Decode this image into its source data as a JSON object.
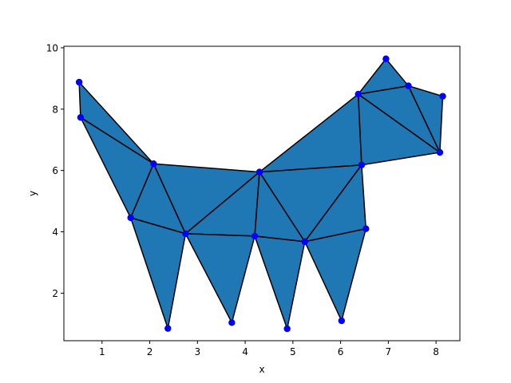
{
  "chart_data": {
    "type": "triangulation",
    "xlabel": "x",
    "ylabel": "y",
    "xlim": [
      0.2,
      8.5
    ],
    "ylim": [
      0.45,
      10.05
    ],
    "xticks": [
      1,
      2,
      3,
      4,
      5,
      6,
      7,
      8
    ],
    "yticks": [
      2,
      4,
      6,
      8,
      10
    ],
    "colors": {
      "fill": "#1f77b4",
      "edge": "#000000",
      "marker": "#0000ff"
    },
    "points": [
      {
        "x": 0.52,
        "y": 8.88
      },
      {
        "x": 0.55,
        "y": 7.73
      },
      {
        "x": 2.08,
        "y": 6.22
      },
      {
        "x": 1.6,
        "y": 4.46
      },
      {
        "x": 2.38,
        "y": 0.85
      },
      {
        "x": 2.75,
        "y": 3.94
      },
      {
        "x": 3.72,
        "y": 1.04
      },
      {
        "x": 4.3,
        "y": 5.95
      },
      {
        "x": 4.2,
        "y": 3.86
      },
      {
        "x": 4.88,
        "y": 0.84
      },
      {
        "x": 5.25,
        "y": 3.68
      },
      {
        "x": 6.02,
        "y": 1.1
      },
      {
        "x": 6.53,
        "y": 4.1
      },
      {
        "x": 6.44,
        "y": 6.18
      },
      {
        "x": 6.37,
        "y": 8.49
      },
      {
        "x": 6.95,
        "y": 9.64
      },
      {
        "x": 7.42,
        "y": 8.76
      },
      {
        "x": 8.14,
        "y": 8.42
      },
      {
        "x": 8.08,
        "y": 6.59
      }
    ],
    "triangles": [
      [
        0,
        1,
        2
      ],
      [
        1,
        2,
        3
      ],
      [
        2,
        3,
        5
      ],
      [
        3,
        4,
        5
      ],
      [
        2,
        5,
        7
      ],
      [
        5,
        7,
        8
      ],
      [
        5,
        6,
        8
      ],
      [
        7,
        8,
        10
      ],
      [
        8,
        9,
        10
      ],
      [
        7,
        10,
        13
      ],
      [
        10,
        12,
        13
      ],
      [
        10,
        11,
        12
      ],
      [
        7,
        13,
        14
      ],
      [
        13,
        14,
        18
      ],
      [
        14,
        16,
        18
      ],
      [
        14,
        15,
        16
      ],
      [
        16,
        17,
        18
      ]
    ]
  }
}
